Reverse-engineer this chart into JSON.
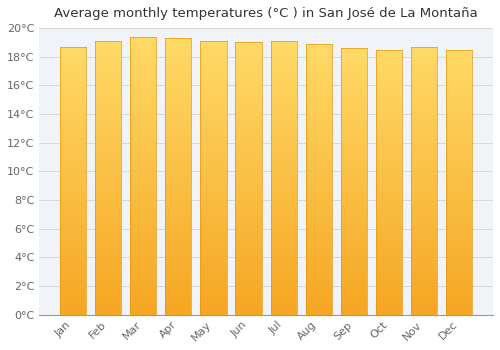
{
  "title": "Average monthly temperatures (°C ) in San José de La Montaña",
  "months": [
    "Jan",
    "Feb",
    "Mar",
    "Apr",
    "May",
    "Jun",
    "Jul",
    "Aug",
    "Sep",
    "Oct",
    "Nov",
    "Dec"
  ],
  "temperatures": [
    18.7,
    19.1,
    19.4,
    19.3,
    19.1,
    19.0,
    19.1,
    18.9,
    18.6,
    18.5,
    18.7,
    18.5
  ],
  "bar_color_top": "#FFD966",
  "bar_color_bottom": "#F5A623",
  "bar_edge_color": "#E8960A",
  "background_color": "#FFFFFF",
  "plot_bg_color": "#F0F4F8",
  "grid_color": "#CCCCCC",
  "ylim": [
    0,
    20
  ],
  "ytick_step": 2,
  "title_fontsize": 9.5,
  "tick_fontsize": 8,
  "bar_width": 0.75,
  "tick_color": "#666666",
  "title_color": "#333333"
}
